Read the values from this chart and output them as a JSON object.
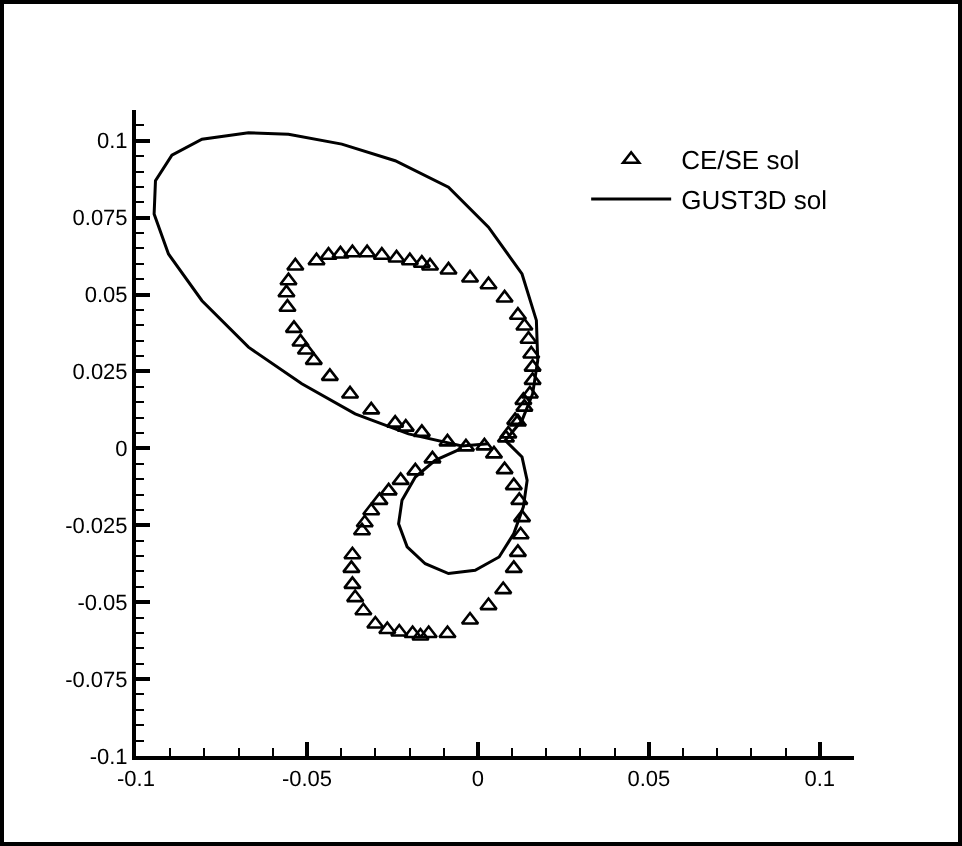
{
  "chart_data": {
    "type": "scatter",
    "xlim": [
      -0.1,
      0.11
    ],
    "ylim": [
      -0.1,
      0.11
    ],
    "xticks": [
      -0.1,
      {
        "value": -0.09,
        "label": null
      },
      {
        "value": -0.08,
        "label": null
      },
      {
        "value": -0.07,
        "label": null
      },
      {
        "value": -0.06,
        "label": null
      },
      -0.05,
      {
        "value": -0.04,
        "label": null
      },
      {
        "value": -0.03,
        "label": null
      },
      {
        "value": -0.02,
        "label": null
      },
      {
        "value": -0.01,
        "label": null
      },
      0,
      {
        "value": 0.01,
        "label": null
      },
      {
        "value": 0.02,
        "label": null
      },
      {
        "value": 0.03,
        "label": null
      },
      {
        "value": 0.04,
        "label": null
      },
      0.05,
      {
        "value": 0.06,
        "label": null
      },
      {
        "value": 0.07,
        "label": null
      },
      {
        "value": 0.08,
        "label": null
      },
      {
        "value": 0.09,
        "label": null
      },
      0.1
    ],
    "yticks": [
      -0.1,
      {
        "value": -0.095,
        "label": null
      },
      {
        "value": -0.09,
        "label": null
      },
      {
        "value": -0.085,
        "label": null
      },
      {
        "value": -0.08,
        "label": null
      },
      -0.075,
      {
        "value": -0.07,
        "label": null
      },
      {
        "value": -0.065,
        "label": null
      },
      {
        "value": -0.06,
        "label": null
      },
      {
        "value": -0.055,
        "label": null
      },
      -0.05,
      {
        "value": -0.045,
        "label": null
      },
      {
        "value": -0.04,
        "label": null
      },
      {
        "value": -0.035,
        "label": null
      },
      {
        "value": -0.03,
        "label": null
      },
      -0.025,
      {
        "value": -0.02,
        "label": null
      },
      {
        "value": -0.015,
        "label": null
      },
      {
        "value": -0.01,
        "label": null
      },
      {
        "value": -0.005,
        "label": null
      },
      0,
      {
        "value": 0.005,
        "label": null
      },
      {
        "value": 0.01,
        "label": null
      },
      {
        "value": 0.015,
        "label": null
      },
      {
        "value": 0.02,
        "label": null
      },
      0.025,
      {
        "value": 0.03,
        "label": null
      },
      {
        "value": 0.035,
        "label": null
      },
      {
        "value": 0.04,
        "label": null
      },
      {
        "value": 0.045,
        "label": null
      },
      0.05,
      {
        "value": 0.055,
        "label": null
      },
      {
        "value": 0.06,
        "label": null
      },
      {
        "value": 0.065,
        "label": null
      },
      {
        "value": 0.07,
        "label": null
      },
      0.075,
      {
        "value": 0.08,
        "label": null
      },
      {
        "value": 0.085,
        "label": null
      },
      {
        "value": 0.09,
        "label": null
      },
      {
        "value": 0.095,
        "label": null
      },
      0.1,
      {
        "value": 0.105,
        "label": null
      }
    ],
    "grid": false,
    "legend": "top right",
    "series": [
      {
        "name": "CE/SE sol",
        "type": "scatter",
        "marker": "triangle",
        "color": "#000000",
        "x": [
          -0.0554,
          -0.056,
          -0.0557,
          -0.0534,
          -0.0472,
          -0.0437,
          -0.0402,
          -0.0367,
          -0.0324,
          -0.0281,
          -0.0238,
          -0.0199,
          -0.0164,
          -0.014,
          -0.0086,
          -0.0023,
          0.0031,
          0.0078,
          0.0117,
          0.0136,
          0.0148,
          0.0156,
          0.016,
          0.016,
          0.0152,
          0.0136,
          0.0117,
          0.0089,
          -0.0538,
          -0.0519,
          -0.0503,
          -0.048,
          -0.0433,
          -0.0374,
          -0.0312,
          -0.0242,
          -0.0211,
          -0.0164,
          -0.0089,
          -0.0035,
          0.0019,
          -0.0133,
          -0.0183,
          -0.0226,
          -0.0261,
          -0.0288,
          -0.0312,
          -0.0331,
          -0.0339,
          -0.0367,
          -0.037,
          -0.0367,
          -0.0359,
          -0.0335,
          -0.03,
          -0.0265,
          -0.023,
          -0.0191,
          -0.0168,
          -0.0144,
          -0.0089,
          -0.0023,
          0.0031,
          0.0074,
          0.0105,
          0.0117,
          0.0125,
          0.0129,
          0.0121,
          0.0105,
          0.0078,
          0.0047,
          0.0082,
          0.0109,
          0.0133
        ],
        "values": [
          0.0545,
          0.0506,
          0.0459,
          0.0593,
          0.061,
          0.0628,
          0.0632,
          0.0636,
          0.0636,
          0.0628,
          0.0619,
          0.061,
          0.0602,
          0.0593,
          0.058,
          0.0554,
          0.0532,
          0.0489,
          0.0433,
          0.0398,
          0.0355,
          0.0307,
          0.0264,
          0.0221,
          0.0177,
          0.0134,
          0.0086,
          0.0047,
          0.039,
          0.0346,
          0.032,
          0.0286,
          0.0234,
          0.0177,
          0.0125,
          0.0082,
          0.0069,
          0.0052,
          0.0021,
          0.0005,
          0.0008,
          -0.0034,
          -0.0073,
          -0.0104,
          -0.0138,
          -0.0169,
          -0.0203,
          -0.0242,
          -0.0268,
          -0.0346,
          -0.039,
          -0.0442,
          -0.0485,
          -0.0528,
          -0.0571,
          -0.0589,
          -0.0597,
          -0.0602,
          -0.061,
          -0.0602,
          -0.0602,
          -0.0558,
          -0.0511,
          -0.0459,
          -0.039,
          -0.0338,
          -0.0281,
          -0.0225,
          -0.0169,
          -0.0121,
          -0.0069,
          -0.0018,
          0.0034,
          0.0091,
          0.0156
        ]
      },
      {
        "name": "GUST3D sol",
        "type": "line",
        "line_style": "solid",
        "color": "#000000",
        "x": [
          0.0031,
          -0.0047,
          -0.0203,
          -0.0359,
          -0.0515,
          -0.0671,
          -0.0807,
          -0.0905,
          -0.0947,
          -0.0943,
          -0.0895,
          -0.0807,
          -0.0671,
          -0.0554,
          -0.0398,
          -0.0242,
          -0.0086,
          0.0031,
          0.0129,
          0.0171,
          0.0175,
          0.016,
          0.0129,
          0.008,
          0.0129,
          0.0144,
          0.0133,
          0.0105,
          0.0062,
          -0.0008,
          -0.0086,
          -0.0154,
          -0.0207,
          -0.0232,
          -0.0222,
          -0.0183,
          -0.0125,
          -0.0047
        ],
        "values": [
          0.0015,
          0.0008,
          0.0047,
          0.0112,
          0.021,
          0.0329,
          0.048,
          0.0632,
          0.0762,
          0.087,
          0.0953,
          0.1005,
          0.1026,
          0.1021,
          0.0989,
          0.0935,
          0.0849,
          0.0719,
          0.0567,
          0.0416,
          0.0286,
          0.0177,
          0.0091,
          0.0026,
          -0.0028,
          -0.0104,
          -0.019,
          -0.0277,
          -0.0353,
          -0.0396,
          -0.0407,
          -0.0375,
          -0.032,
          -0.0245,
          -0.0169,
          -0.0093,
          -0.0039,
          0.0
        ]
      }
    ]
  }
}
